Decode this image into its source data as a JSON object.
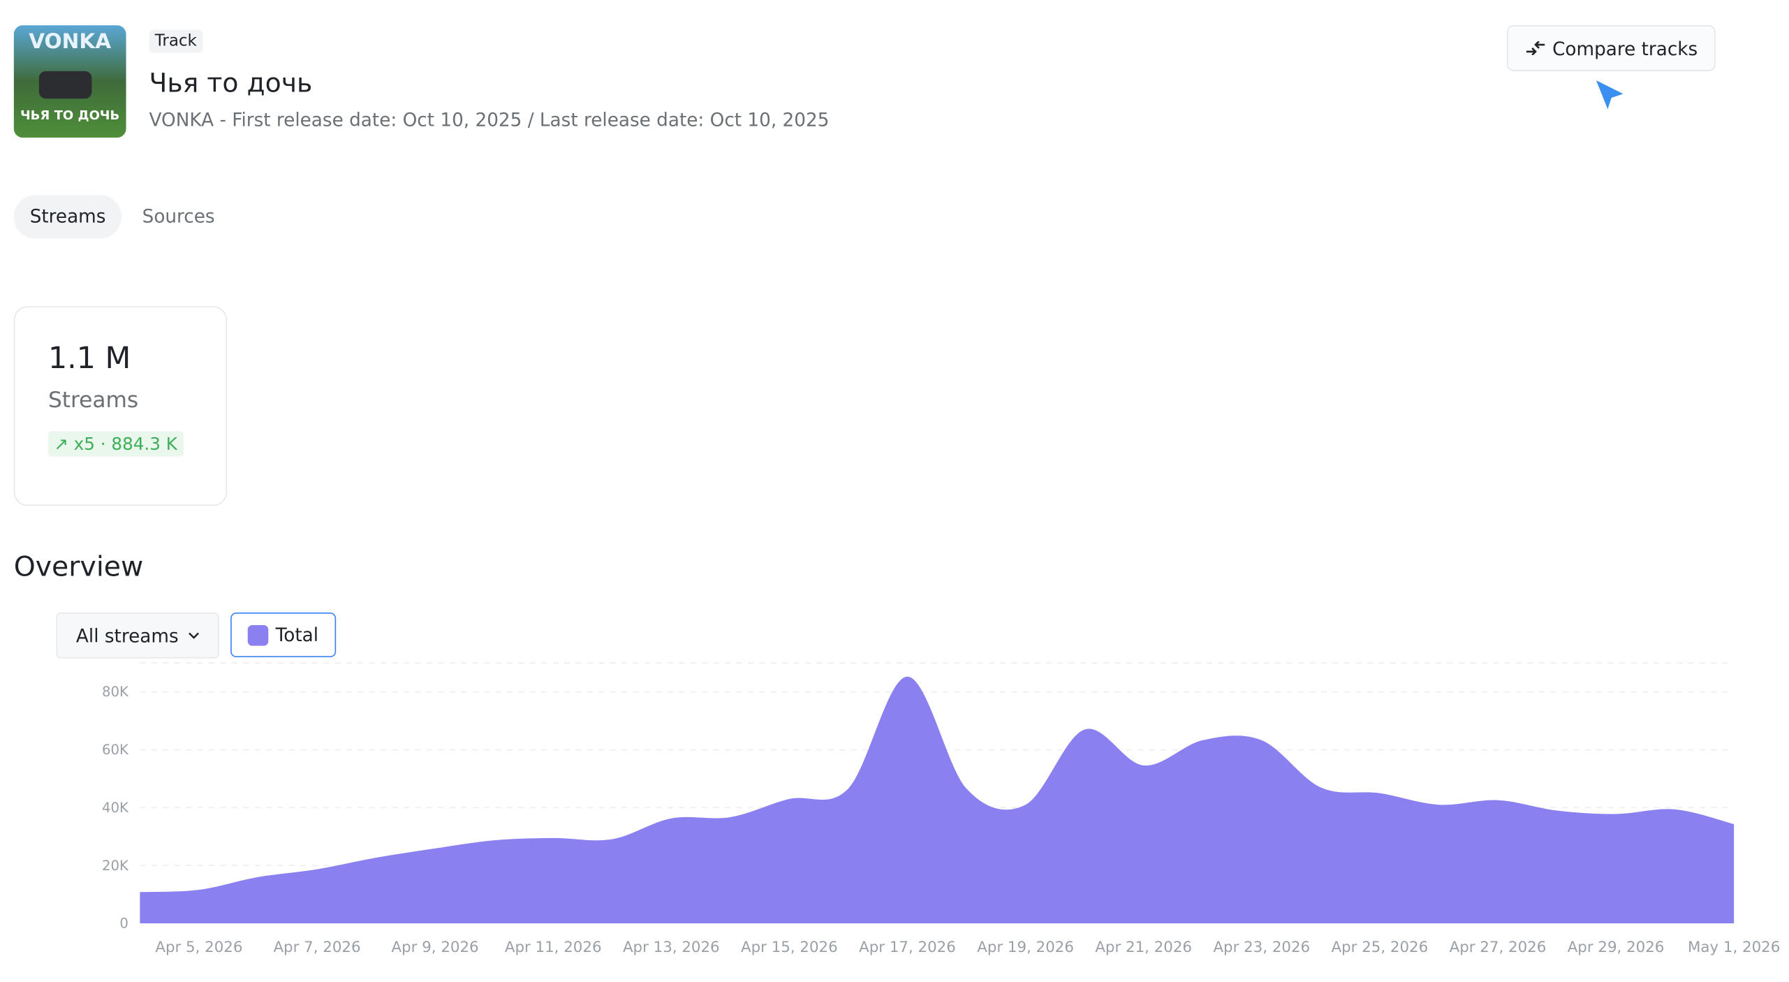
{
  "header": {
    "cover": {
      "top": "VONKA",
      "bottom": "ЧЬЯ ТО ДОЧЬ"
    },
    "tag": "Track",
    "title": "Чья то дочь",
    "subtitle": "VONKA - First release date: Oct 10, 2025 / Last release date: Oct 10, 2025",
    "button": "Compare tracks"
  },
  "tabs": [
    "Streams",
    "Sources"
  ],
  "card": {
    "value": "1.1 M",
    "label": "Streams",
    "change": "x5 · 884.3 K"
  },
  "overview": {
    "title": "Overview",
    "dropdown": "All streams"
  },
  "chart_data": {
    "type": "area",
    "categories": [
      null,
      "Apr 5, 2026",
      null,
      "Apr 7, 2026",
      null,
      "Apr 9, 2026",
      null,
      "Apr 11, 2026",
      null,
      "Apr 13, 2026",
      null,
      "Apr 15, 2026",
      null,
      "Apr 17, 2026",
      null,
      "Apr 19, 2026",
      null,
      "Apr 21, 2026",
      null,
      "Apr 23, 2026",
      null,
      "Apr 25, 2026",
      null,
      "Apr 27, 2026",
      null,
      "Apr 29, 2026",
      null,
      "May 1, 2026"
    ],
    "series": [
      {
        "name": "Total",
        "color": "#8b80f0",
        "values": [
          10800,
          11600,
          16000,
          18700,
          22700,
          25900,
          28700,
          29500,
          29100,
          36300,
          36700,
          43000,
          46600,
          85300,
          46600,
          41000,
          67000,
          54600,
          63300,
          63300,
          47000,
          45000,
          41000,
          42600,
          39000,
          37800,
          39400,
          34300
        ]
      }
    ],
    "ylim": [
      0,
      90000
    ],
    "yticks": [
      0,
      {
        "value": 20000,
        "label": "20K"
      },
      {
        "value": 40000,
        "label": "40K"
      },
      {
        "value": 60000,
        "label": "60K"
      },
      {
        "value": 80000,
        "label": "80K"
      }
    ],
    "grid": true
  }
}
